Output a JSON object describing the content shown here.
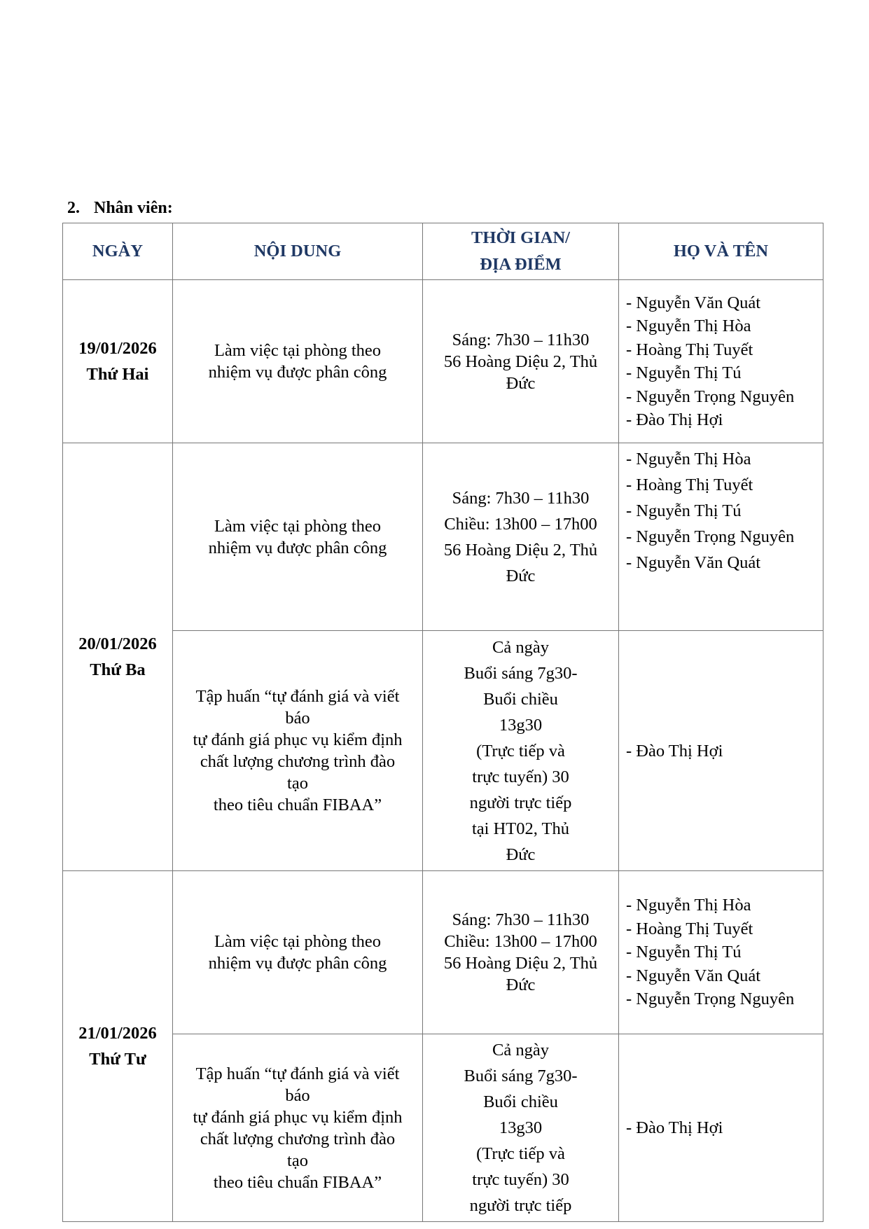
{
  "section": {
    "number": "2.",
    "title": "Nhân viên:"
  },
  "headers": [
    "NGÀY",
    "NỘI DUNG",
    "THỜI GIAN/",
    "ĐỊA ĐIỂM",
    "HỌ VÀ TÊN"
  ],
  "rows": [
    {
      "date": "19/01/2026",
      "weekday": "Thứ Hai",
      "content": [
        "Làm việc tại phòng theo",
        "nhiệm vụ được phân công"
      ],
      "time": [
        "Sáng: 7h30 – 11h30",
        "56 Hoàng Diệu 2, Thủ",
        "Đức"
      ],
      "names": [
        "- Nguyễn Văn Quát",
        "- Nguyễn Thị Hòa",
        "- Hoàng Thị Tuyết",
        "- Nguyễn Thị Tú",
        "- Nguyễn Trọng Nguyên",
        "- Đào Thị Hợi"
      ]
    },
    {
      "date": "20/01/2026",
      "weekday": "Thứ Ba",
      "content": [
        "Làm việc tại phòng theo",
        "nhiệm vụ được phân công"
      ],
      "time": [
        "Sáng: 7h30 – 11h30",
        "Chiều: 13h00 – 17h00",
        "56 Hoàng Diệu 2, Thủ",
        "Đức"
      ],
      "names": [
        "- Nguyễn Thị Hòa",
        "- Hoàng Thị Tuyết",
        "- Nguyễn Thị Tú",
        "- Nguyễn Trọng Nguyên",
        "- Nguyễn Văn Quát"
      ]
    },
    {
      "content": [
        "Tập huấn “tự đánh giá và viết",
        "báo",
        "tự đánh giá phục vụ kiểm định",
        "chất lượng chương trình đào",
        "tạo",
        "theo tiêu chuẩn FIBAA”"
      ],
      "time": [
        "Cả ngày",
        "Buổi sáng 7g30-",
        "Buổi chiều",
        "13g30",
        "(Trực tiếp và",
        "trực tuyến) 30",
        "người trực tiếp",
        "tại HT02, Thủ",
        "Đức"
      ],
      "names": [
        "- Đào Thị Hợi"
      ]
    },
    {
      "date": "21/01/2026",
      "weekday": "Thứ Tư",
      "content": [
        "Làm việc tại phòng theo",
        "nhiệm vụ được phân công"
      ],
      "time": [
        "Sáng: 7h30 – 11h30",
        "Chiều: 13h00 – 17h00",
        "56 Hoàng Diệu 2, Thủ",
        "Đức"
      ],
      "names": [
        "- Nguyễn Thị Hòa",
        "- Hoàng Thị Tuyết",
        "- Nguyễn Thị Tú",
        "- Nguyễn Văn Quát",
        "- Nguyễn Trọng Nguyên"
      ]
    },
    {
      "content": [
        "Tập huấn “tự đánh giá và viết",
        "báo",
        "tự đánh giá phục vụ kiểm định",
        "chất lượng chương trình đào",
        "tạo",
        "theo tiêu chuẩn FIBAA”"
      ],
      "time": [
        "Cả ngày",
        "Buổi sáng 7g30-",
        "Buổi chiều",
        "13g30",
        "(Trực tiếp và",
        "trực tuyến) 30",
        "người trực tiếp"
      ],
      "names": [
        "- Đào Thị Hợi"
      ]
    }
  ]
}
